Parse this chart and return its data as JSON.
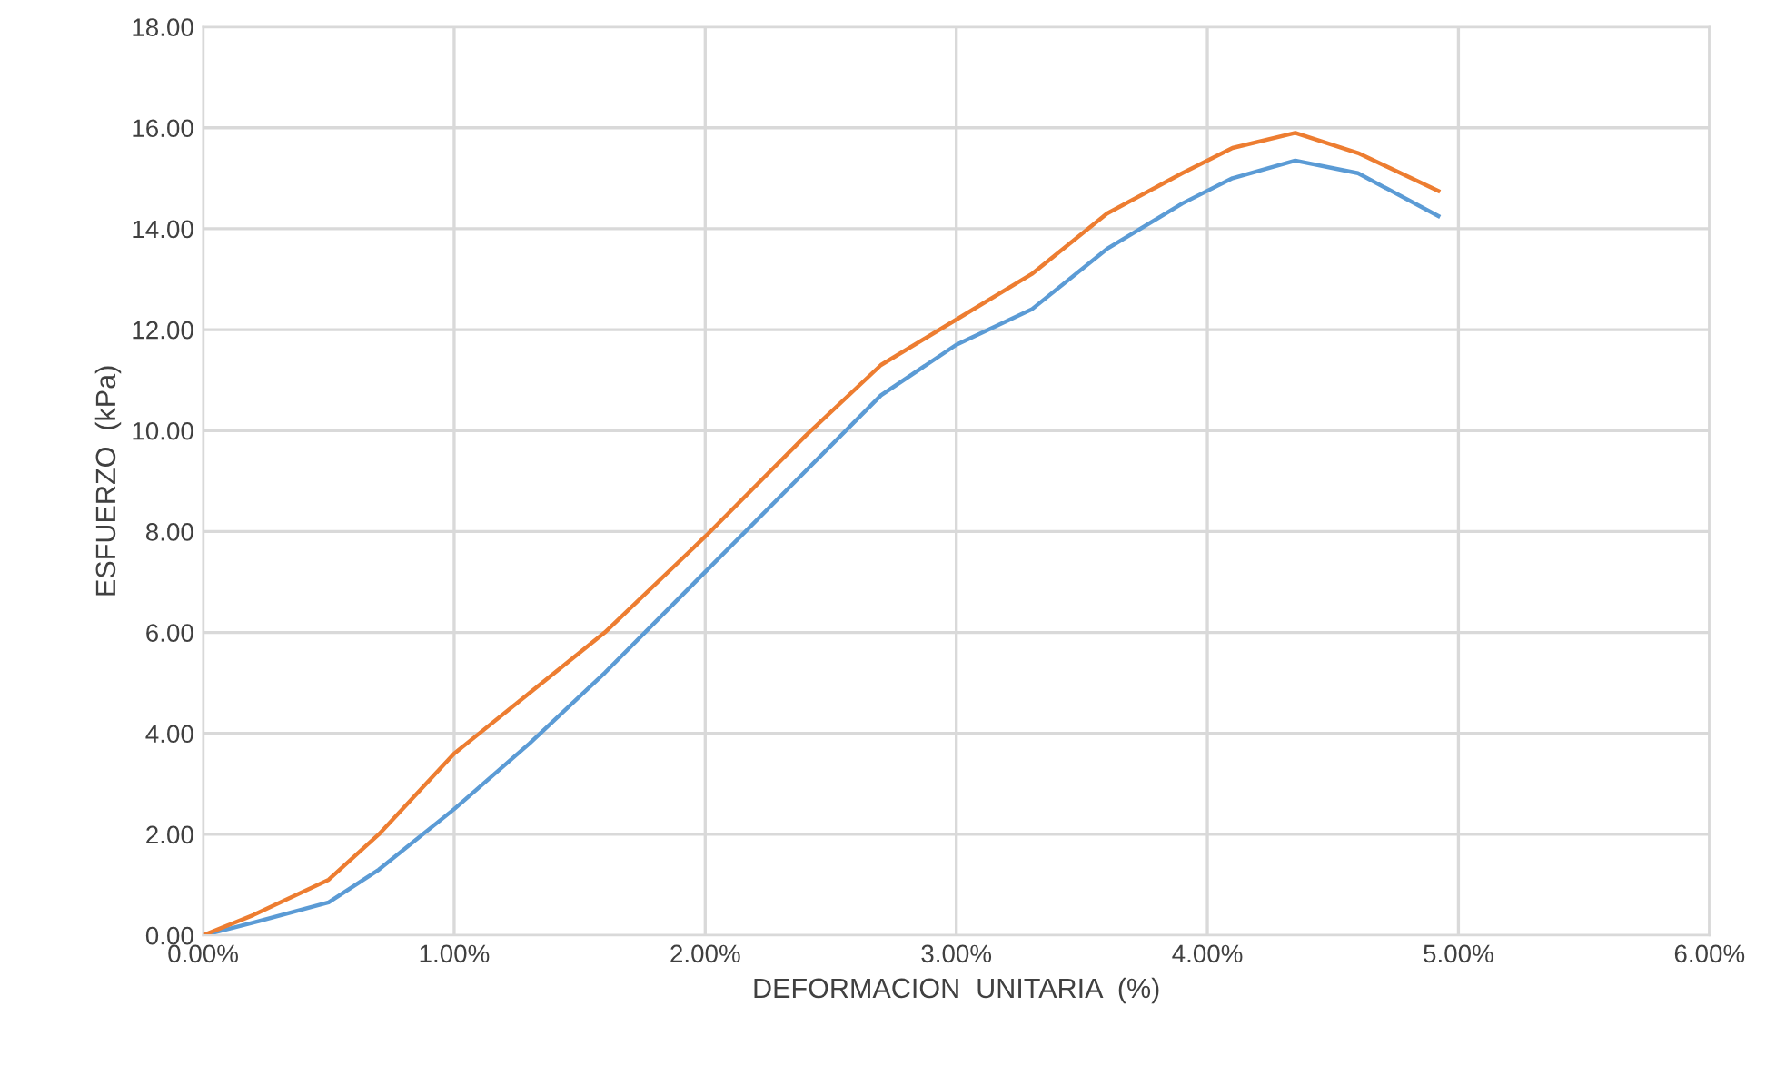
{
  "chart_data": {
    "type": "line",
    "xlabel": "DEFORMACION  UNITARIA  (%)",
    "ylabel": "ESFUERZO  (kPa)",
    "xlim": [
      0,
      6
    ],
    "ylim": [
      0,
      18
    ],
    "xticks": [
      {
        "value": 0,
        "label": "0.00%"
      },
      {
        "value": 1,
        "label": "1.00%"
      },
      {
        "value": 2,
        "label": "2.00%"
      },
      {
        "value": 3,
        "label": "3.00%"
      },
      {
        "value": 4,
        "label": "4.00%"
      },
      {
        "value": 5,
        "label": "5.00%"
      },
      {
        "value": 6,
        "label": "6.00%"
      }
    ],
    "yticks": [
      {
        "value": 0,
        "label": "0.00"
      },
      {
        "value": 2,
        "label": "2.00"
      },
      {
        "value": 4,
        "label": "4.00"
      },
      {
        "value": 6,
        "label": "6.00"
      },
      {
        "value": 8,
        "label": "8.00"
      },
      {
        "value": 10,
        "label": "10.00"
      },
      {
        "value": 12,
        "label": "12.00"
      },
      {
        "value": 14,
        "label": "14.00"
      },
      {
        "value": 16,
        "label": "16.00"
      },
      {
        "value": 18,
        "label": "18.00"
      }
    ],
    "grid": true,
    "marker": "none",
    "line_style": "solid",
    "series": [
      {
        "color": "#5b9bd5",
        "x": [
          0,
          0.2,
          0.5,
          0.7,
          1.0,
          1.3,
          1.6,
          2.0,
          2.4,
          2.7,
          3.0,
          3.3,
          3.6,
          3.9,
          4.1,
          4.35,
          4.6,
          4.92
        ],
        "values": [
          0,
          0.25,
          0.65,
          1.3,
          2.5,
          3.8,
          5.2,
          7.2,
          9.2,
          10.7,
          11.7,
          12.4,
          13.6,
          14.5,
          15.0,
          15.35,
          15.1,
          14.25
        ]
      },
      {
        "color": "#ed7d31",
        "x": [
          0,
          0.2,
          0.5,
          0.7,
          1.0,
          1.3,
          1.6,
          2.0,
          2.4,
          2.7,
          3.0,
          3.3,
          3.6,
          3.9,
          4.1,
          4.35,
          4.6,
          4.92
        ],
        "values": [
          0,
          0.4,
          1.1,
          2.0,
          3.6,
          4.8,
          6.0,
          7.9,
          9.9,
          11.3,
          12.2,
          13.1,
          14.3,
          15.1,
          15.6,
          15.9,
          15.5,
          14.75
        ]
      }
    ]
  }
}
